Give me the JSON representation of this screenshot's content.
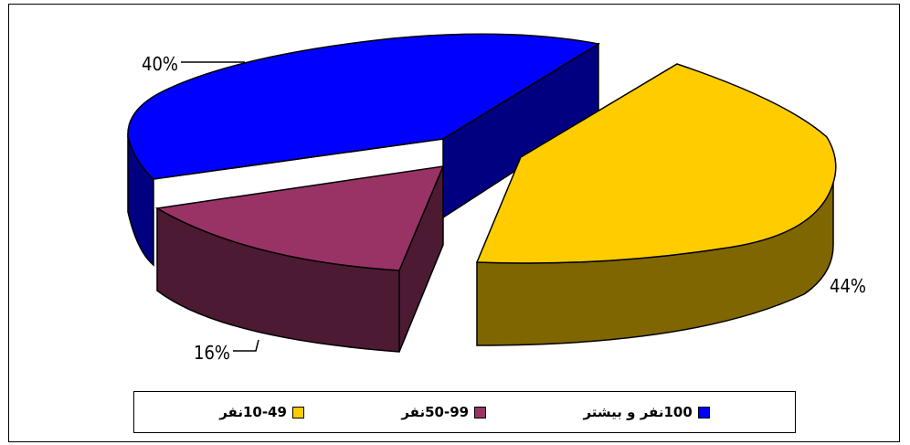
{
  "chart_data": {
    "type": "pie",
    "style": "3d-exploded",
    "slices": [
      {
        "label": "10-49نفر",
        "value": 44,
        "value_label": "44%",
        "top_color": "#FFCC00",
        "side_color": "#806600"
      },
      {
        "label": "50-99نفر",
        "value": 16,
        "value_label": "16%",
        "top_color": "#993366",
        "side_color": "#4D1A33"
      },
      {
        "label": "100نفر و بیشتر",
        "value": 40,
        "value_label": "40%",
        "top_color": "#0000FF",
        "side_color": "#000080"
      }
    ],
    "legend_position": "bottom"
  }
}
